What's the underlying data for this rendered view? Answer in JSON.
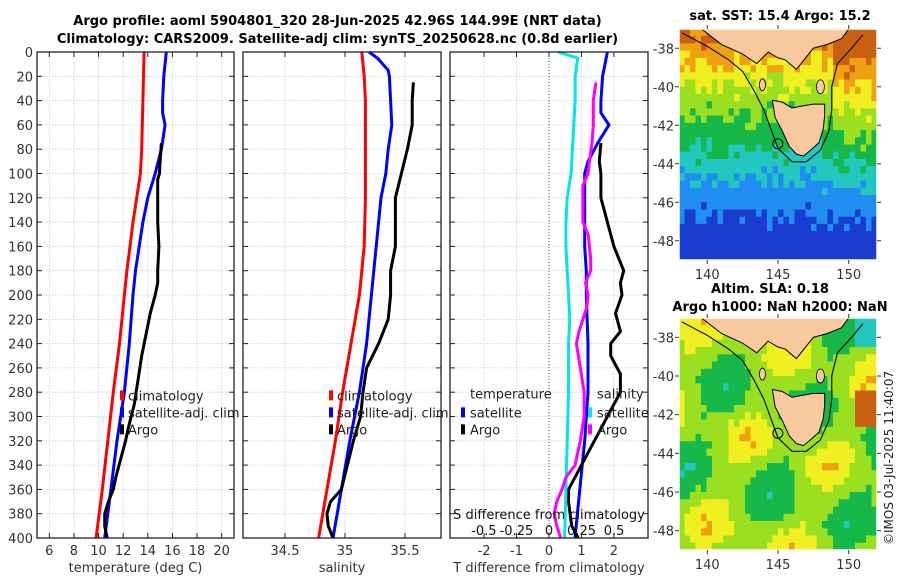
{
  "header": {
    "title_line1": "Argo profile: aoml 5904801_320 28-Jun-2025 42.96S 144.99E (NRT data)",
    "title_line2": "Climatology: CARS2009. Satellite-adj clim: synTS_20250628.nc (0.8d earlier)"
  },
  "colors": {
    "climatology": "#ff0000",
    "satellite": "#0000ff",
    "argo": "#000000",
    "salinity_satellite": "#00e5ee",
    "salinity_argo": "#ff00ff",
    "land": "#f7c99c"
  },
  "chart_data": [
    {
      "type": "line",
      "id": "temperature",
      "title": "",
      "xlabel": "temperature (deg C)",
      "ylabel": "",
      "xlim": [
        5,
        21
      ],
      "ylim": [
        400,
        0
      ],
      "xticks": [
        6,
        8,
        10,
        12,
        14,
        16,
        18,
        20
      ],
      "yticks": [
        0,
        20,
        40,
        60,
        80,
        100,
        120,
        140,
        160,
        180,
        200,
        220,
        240,
        260,
        280,
        300,
        320,
        340,
        360,
        380,
        400
      ],
      "grid": true,
      "legend": {
        "position": "bottom-right",
        "entries": [
          "climatology",
          "satellite-adj. clim",
          "Argo"
        ]
      },
      "series": [
        {
          "name": "climatology",
          "color": "#ff0000",
          "depth": [
            0,
            20,
            40,
            60,
            80,
            100,
            120,
            140,
            160,
            180,
            200,
            240,
            280,
            320,
            360,
            400
          ],
          "values": [
            13.7,
            13.65,
            13.6,
            13.55,
            13.5,
            13.4,
            13.1,
            12.8,
            12.55,
            12.3,
            12.1,
            11.7,
            11.2,
            10.75,
            10.3,
            9.8
          ]
        },
        {
          "name": "satellite-adj. clim",
          "color": "#0000ff",
          "depth": [
            0,
            20,
            40,
            50,
            60,
            80,
            100,
            120,
            140,
            160,
            180,
            200,
            240,
            280,
            320,
            360,
            400
          ],
          "values": [
            15.5,
            15.3,
            15.2,
            15.2,
            15.4,
            15.1,
            14.6,
            14.0,
            13.6,
            13.3,
            13.0,
            12.8,
            12.5,
            12.1,
            11.5,
            11.0,
            10.5
          ]
        },
        {
          "name": "Argo",
          "color": "#000000",
          "depth": [
            75,
            90,
            100,
            105,
            120,
            140,
            160,
            180,
            190,
            200,
            215,
            230,
            250,
            270,
            290,
            310,
            320,
            335,
            350,
            360,
            370,
            380,
            390,
            395,
            400
          ],
          "values": [
            15.1,
            15.0,
            14.95,
            14.8,
            14.8,
            14.8,
            14.9,
            14.8,
            14.8,
            14.6,
            14.2,
            13.9,
            13.5,
            13.2,
            12.9,
            12.4,
            12.2,
            11.8,
            11.4,
            11.2,
            10.8,
            10.5,
            10.5,
            10.6,
            10.7
          ]
        }
      ]
    },
    {
      "type": "line",
      "id": "salinity",
      "title": "",
      "xlabel": "salinity",
      "ylabel": "",
      "xlim": [
        34.15,
        35.8
      ],
      "ylim": [
        400,
        0
      ],
      "xticks": [
        34.5,
        35,
        35.5
      ],
      "grid": true,
      "legend": {
        "position": "bottom-right",
        "entries": [
          "climatology",
          "satellite-adj. clim",
          "Argo"
        ]
      },
      "series": [
        {
          "name": "climatology",
          "color": "#ff0000",
          "depth": [
            0,
            20,
            40,
            80,
            120,
            160,
            200,
            240,
            280,
            320,
            360,
            400
          ],
          "values": [
            35.14,
            35.16,
            35.17,
            35.17,
            35.17,
            35.16,
            35.12,
            35.05,
            34.98,
            34.92,
            34.85,
            34.78
          ]
        },
        {
          "name": "satellite-adj. clim",
          "color": "#0000ff",
          "depth": [
            0,
            5,
            15,
            20,
            40,
            60,
            80,
            100,
            120,
            140,
            160,
            200,
            240,
            280,
            320,
            360,
            400
          ],
          "values": [
            35.2,
            35.27,
            35.36,
            35.37,
            35.38,
            35.39,
            35.36,
            35.34,
            35.3,
            35.28,
            35.26,
            35.22,
            35.18,
            35.12,
            35.04,
            34.97,
            34.9
          ]
        },
        {
          "name": "Argo",
          "color": "#000000",
          "depth": [
            25,
            40,
            60,
            80,
            100,
            120,
            140,
            160,
            180,
            200,
            220,
            240,
            260,
            280,
            300,
            320,
            340,
            360,
            370,
            380,
            390,
            400
          ],
          "values": [
            35.57,
            35.56,
            35.56,
            35.52,
            35.47,
            35.42,
            35.42,
            35.42,
            35.38,
            35.38,
            35.36,
            35.28,
            35.18,
            35.15,
            35.13,
            35.07,
            35.02,
            34.97,
            34.88,
            34.85,
            34.86,
            34.9
          ]
        }
      ]
    },
    {
      "type": "line",
      "id": "difference",
      "title": "",
      "xlabel": "T difference from climatology",
      "xlabel_secondary": "S difference from climatology",
      "xlim": [
        -3.05,
        3.05
      ],
      "xlim_secondary": [
        -0.76,
        0.76
      ],
      "ylim": [
        400,
        0
      ],
      "xticks": [
        -2,
        -1,
        0,
        1,
        2
      ],
      "xticks_secondary": [
        "-0.5",
        "-0.25",
        "0",
        "0.25",
        "0.5"
      ],
      "xticks_secondary_values": [
        -0.5,
        -0.25,
        0,
        0.25,
        0.5
      ],
      "zero_line": "dotted",
      "grid": true,
      "legend": {
        "temperature": {
          "heading": "temperature",
          "entries": [
            "satellite",
            "Argo"
          ]
        },
        "salinity": {
          "heading": "salinity",
          "entries": [
            "satellite",
            "Argo"
          ]
        }
      },
      "series": [
        {
          "name": "temperature satellite",
          "color": "#0000ff",
          "axis": "T",
          "depth": [
            0,
            20,
            40,
            50,
            60,
            75,
            90,
            100,
            120,
            140,
            160,
            180,
            200,
            240,
            280,
            320,
            360,
            400
          ],
          "values": [
            1.8,
            1.65,
            1.6,
            1.6,
            1.85,
            1.5,
            1.2,
            1.1,
            1.1,
            1.1,
            1.1,
            1.15,
            1.15,
            1.2,
            1.2,
            1.1,
            0.95,
            0.8
          ]
        },
        {
          "name": "temperature Argo",
          "color": "#000000",
          "axis": "T",
          "depth": [
            75,
            90,
            100,
            120,
            140,
            160,
            180,
            190,
            200,
            215,
            230,
            240,
            250,
            265,
            280,
            300,
            320,
            340,
            350,
            360,
            370,
            380,
            390,
            400
          ],
          "values": [
            1.6,
            1.55,
            1.6,
            1.6,
            1.8,
            2.0,
            2.3,
            2.2,
            2.25,
            2.05,
            2.2,
            1.9,
            1.9,
            2.2,
            2.2,
            1.8,
            1.4,
            1.0,
            0.8,
            0.6,
            0.6,
            0.65,
            0.7,
            0.9
          ]
        },
        {
          "name": "salinity satellite",
          "color": "#00e5ee",
          "axis": "S",
          "depth": [
            0,
            5,
            20,
            40,
            60,
            80,
            100,
            120,
            140,
            160,
            180,
            200,
            220,
            240,
            280,
            320,
            360,
            400
          ],
          "values": [
            0.07,
            0.22,
            0.2,
            0.2,
            0.19,
            0.18,
            0.17,
            0.14,
            0.13,
            0.13,
            0.14,
            0.15,
            0.16,
            0.15,
            0.15,
            0.14,
            0.13,
            0.12
          ]
        },
        {
          "name": "salinity Argo",
          "color": "#ff00ff",
          "axis": "S",
          "depth": [
            25,
            40,
            60,
            75,
            90,
            100,
            110,
            130,
            140,
            150,
            170,
            180,
            190,
            200,
            210,
            230,
            240,
            260,
            280,
            300,
            320,
            340,
            350,
            360,
            370,
            380,
            390,
            400
          ],
          "values": [
            0.36,
            0.34,
            0.34,
            0.33,
            0.31,
            0.3,
            0.26,
            0.26,
            0.26,
            0.3,
            0.32,
            0.32,
            0.28,
            0.3,
            0.29,
            0.23,
            0.21,
            0.24,
            0.27,
            0.27,
            0.24,
            0.2,
            0.13,
            0.1,
            0.06,
            0.04,
            0.06,
            0.09
          ]
        }
      ]
    },
    {
      "type": "heatmap",
      "id": "sst_map",
      "title": "sat. SST: 15.4 Argo: 15.2",
      "xlim": [
        138,
        152
      ],
      "ylim": [
        -49,
        -37
      ],
      "xticks": [
        140,
        145,
        150
      ],
      "yticks": [
        -38,
        -40,
        -42,
        -44,
        -46,
        -48
      ],
      "profile_marker": {
        "lon": 144.99,
        "lat": -42.96
      }
    },
    {
      "type": "heatmap",
      "id": "sla_map",
      "title_line1": "Altim. SLA: 0.18",
      "title_line2": "Argo h1000: NaN h2000: NaN",
      "xlim": [
        138,
        152
      ],
      "ylim": [
        -49,
        -37
      ],
      "xticks": [
        140,
        145,
        150
      ],
      "yticks": [
        -38,
        -40,
        -42,
        -44,
        -46,
        -48
      ],
      "profile_marker": {
        "lon": 144.99,
        "lat": -42.96
      }
    }
  ],
  "footer": {
    "credit": "©IMOS 03-Jul-2025 11:40:07"
  }
}
